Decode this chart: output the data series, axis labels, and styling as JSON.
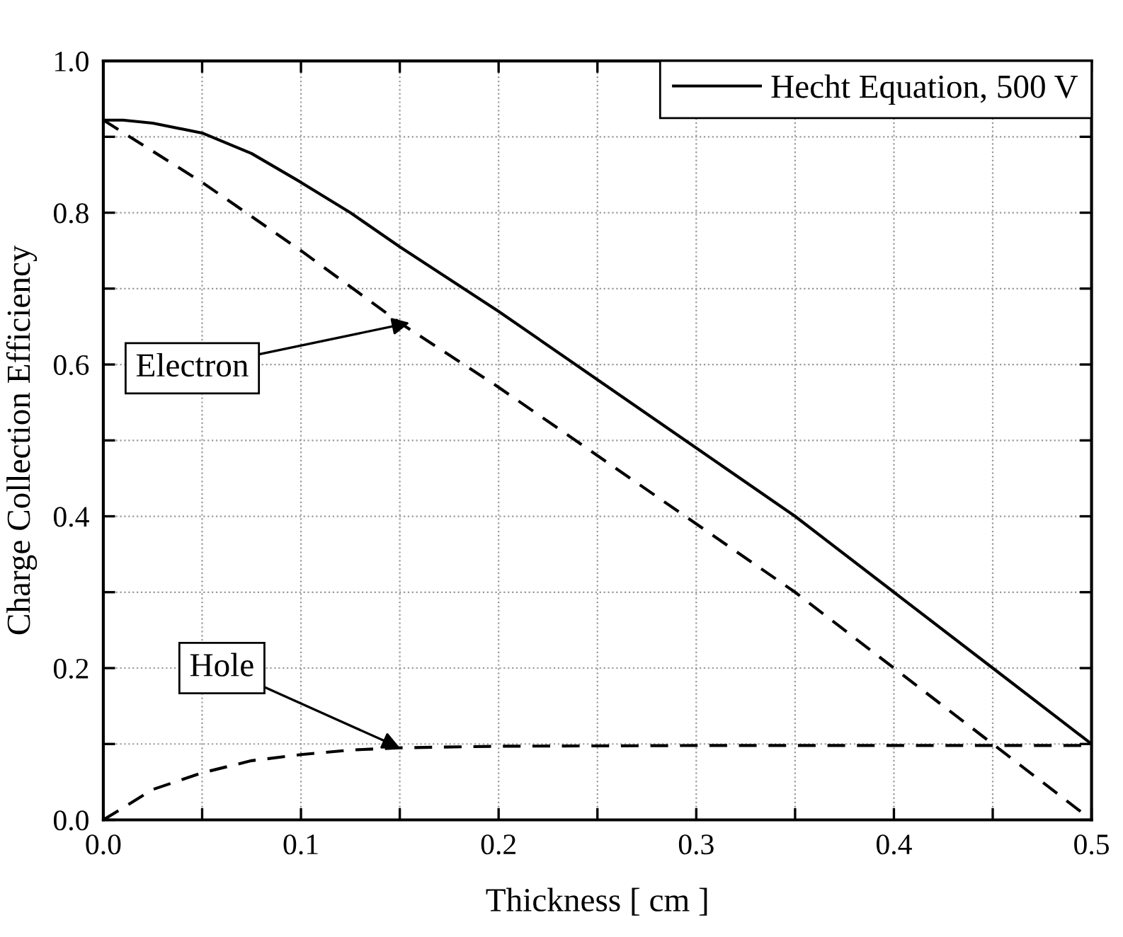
{
  "chart_data": {
    "type": "line",
    "xlabel": "Thickness [ cm ]",
    "ylabel": "Charge Collection Efficiency",
    "xlim": [
      0,
      0.5
    ],
    "ylim": [
      0,
      1.0
    ],
    "xticks": [
      "0.0",
      {
        "value": 0.05,
        "label": null
      },
      0.1,
      {
        "value": 0.15,
        "label": null
      },
      0.2,
      {
        "value": 0.25,
        "label": null
      },
      0.3,
      {
        "value": 0.35,
        "label": null
      },
      0.4,
      {
        "value": 0.45,
        "label": null
      },
      0.5
    ],
    "yticks": [
      {
        "value": 0,
        "label": "0.0"
      },
      {
        "value": 0.1,
        "label": null
      },
      0.2,
      {
        "value": 0.3,
        "label": null
      },
      0.4,
      {
        "value": 0.5,
        "label": null
      },
      0.6,
      {
        "value": 0.7,
        "label": null
      },
      0.8,
      {
        "value": 0.9,
        "label": null
      },
      {
        "value": 1.0,
        "label": "1.0"
      }
    ],
    "grid": true,
    "legend": "top right",
    "marker": "none",
    "series": [
      {
        "name": "Hecht Equation, 500 V",
        "color": "#000000",
        "line_style": "solid",
        "x": [
          0,
          0.01,
          0.025,
          0.05,
          0.075,
          0.1,
          0.125,
          0.15,
          0.2,
          0.25,
          0.3,
          0.35,
          0.4,
          0.45,
          0.5
        ],
        "values": [
          0.922,
          0.922,
          0.918,
          0.905,
          0.878,
          0.84,
          0.8,
          0.755,
          0.67,
          0.58,
          0.49,
          0.4,
          0.3,
          0.2,
          0.1
        ]
      },
      {
        "color": "#000000",
        "line_style": "dashed",
        "x": [
          0,
          0.05,
          0.1,
          0.15,
          0.2,
          0.25,
          0.3,
          0.35,
          0.4,
          0.45,
          0.5
        ],
        "values": [
          0.922,
          0.84,
          0.75,
          0.655,
          0.57,
          0.48,
          0.39,
          0.3,
          0.2,
          0.1,
          0.0
        ]
      },
      {
        "color": "#000000",
        "line_style": "dashed",
        "x": [
          0,
          0.025,
          0.05,
          0.075,
          0.1,
          0.125,
          0.15,
          0.2,
          0.3,
          0.4,
          0.5
        ],
        "values": [
          0.0,
          0.04,
          0.062,
          0.078,
          0.086,
          0.092,
          0.095,
          0.097,
          0.098,
          0.098,
          0.098
        ]
      }
    ],
    "annotations": [
      {
        "text": "Electron",
        "x": 0.155,
        "y": 0.655
      },
      {
        "text": "Hole",
        "x": 0.15,
        "y": 0.095
      }
    ]
  }
}
